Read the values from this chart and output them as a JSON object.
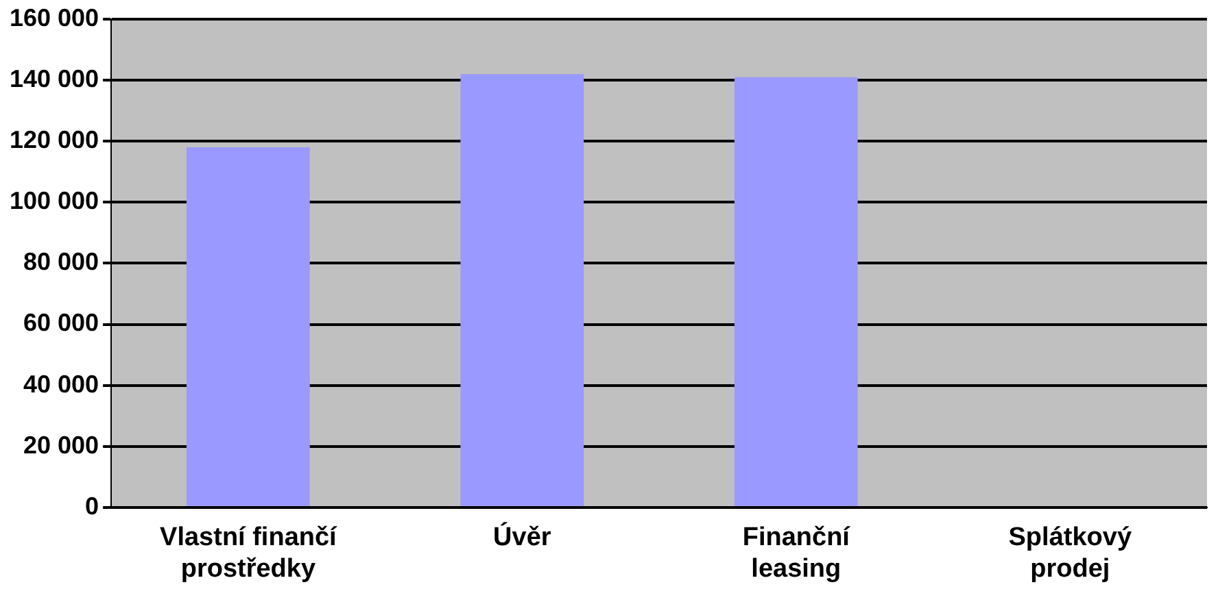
{
  "chart_data": {
    "type": "bar",
    "categories": [
      "Vlastní finančí prostředky",
      "Úvěr",
      "Finanční leasing",
      "Splátkový prodej"
    ],
    "values": [
      118000,
      142000,
      141000,
      0
    ],
    "color": "#9999ff",
    "ylim": [
      0,
      160000
    ],
    "yticks": [
      {
        "value": 0,
        "label": "0"
      },
      {
        "value": 20000,
        "label": "20 000"
      },
      {
        "value": 40000,
        "label": "40 000"
      },
      {
        "value": 60000,
        "label": "60 000"
      },
      {
        "value": 80000,
        "label": "80 000"
      },
      {
        "value": 100000,
        "label": "100 000"
      },
      {
        "value": 120000,
        "label": "120 000"
      },
      {
        "value": 140000,
        "label": "140 000"
      },
      {
        "value": 160000,
        "label": "160 000"
      }
    ],
    "grid": "y",
    "legend": false
  }
}
